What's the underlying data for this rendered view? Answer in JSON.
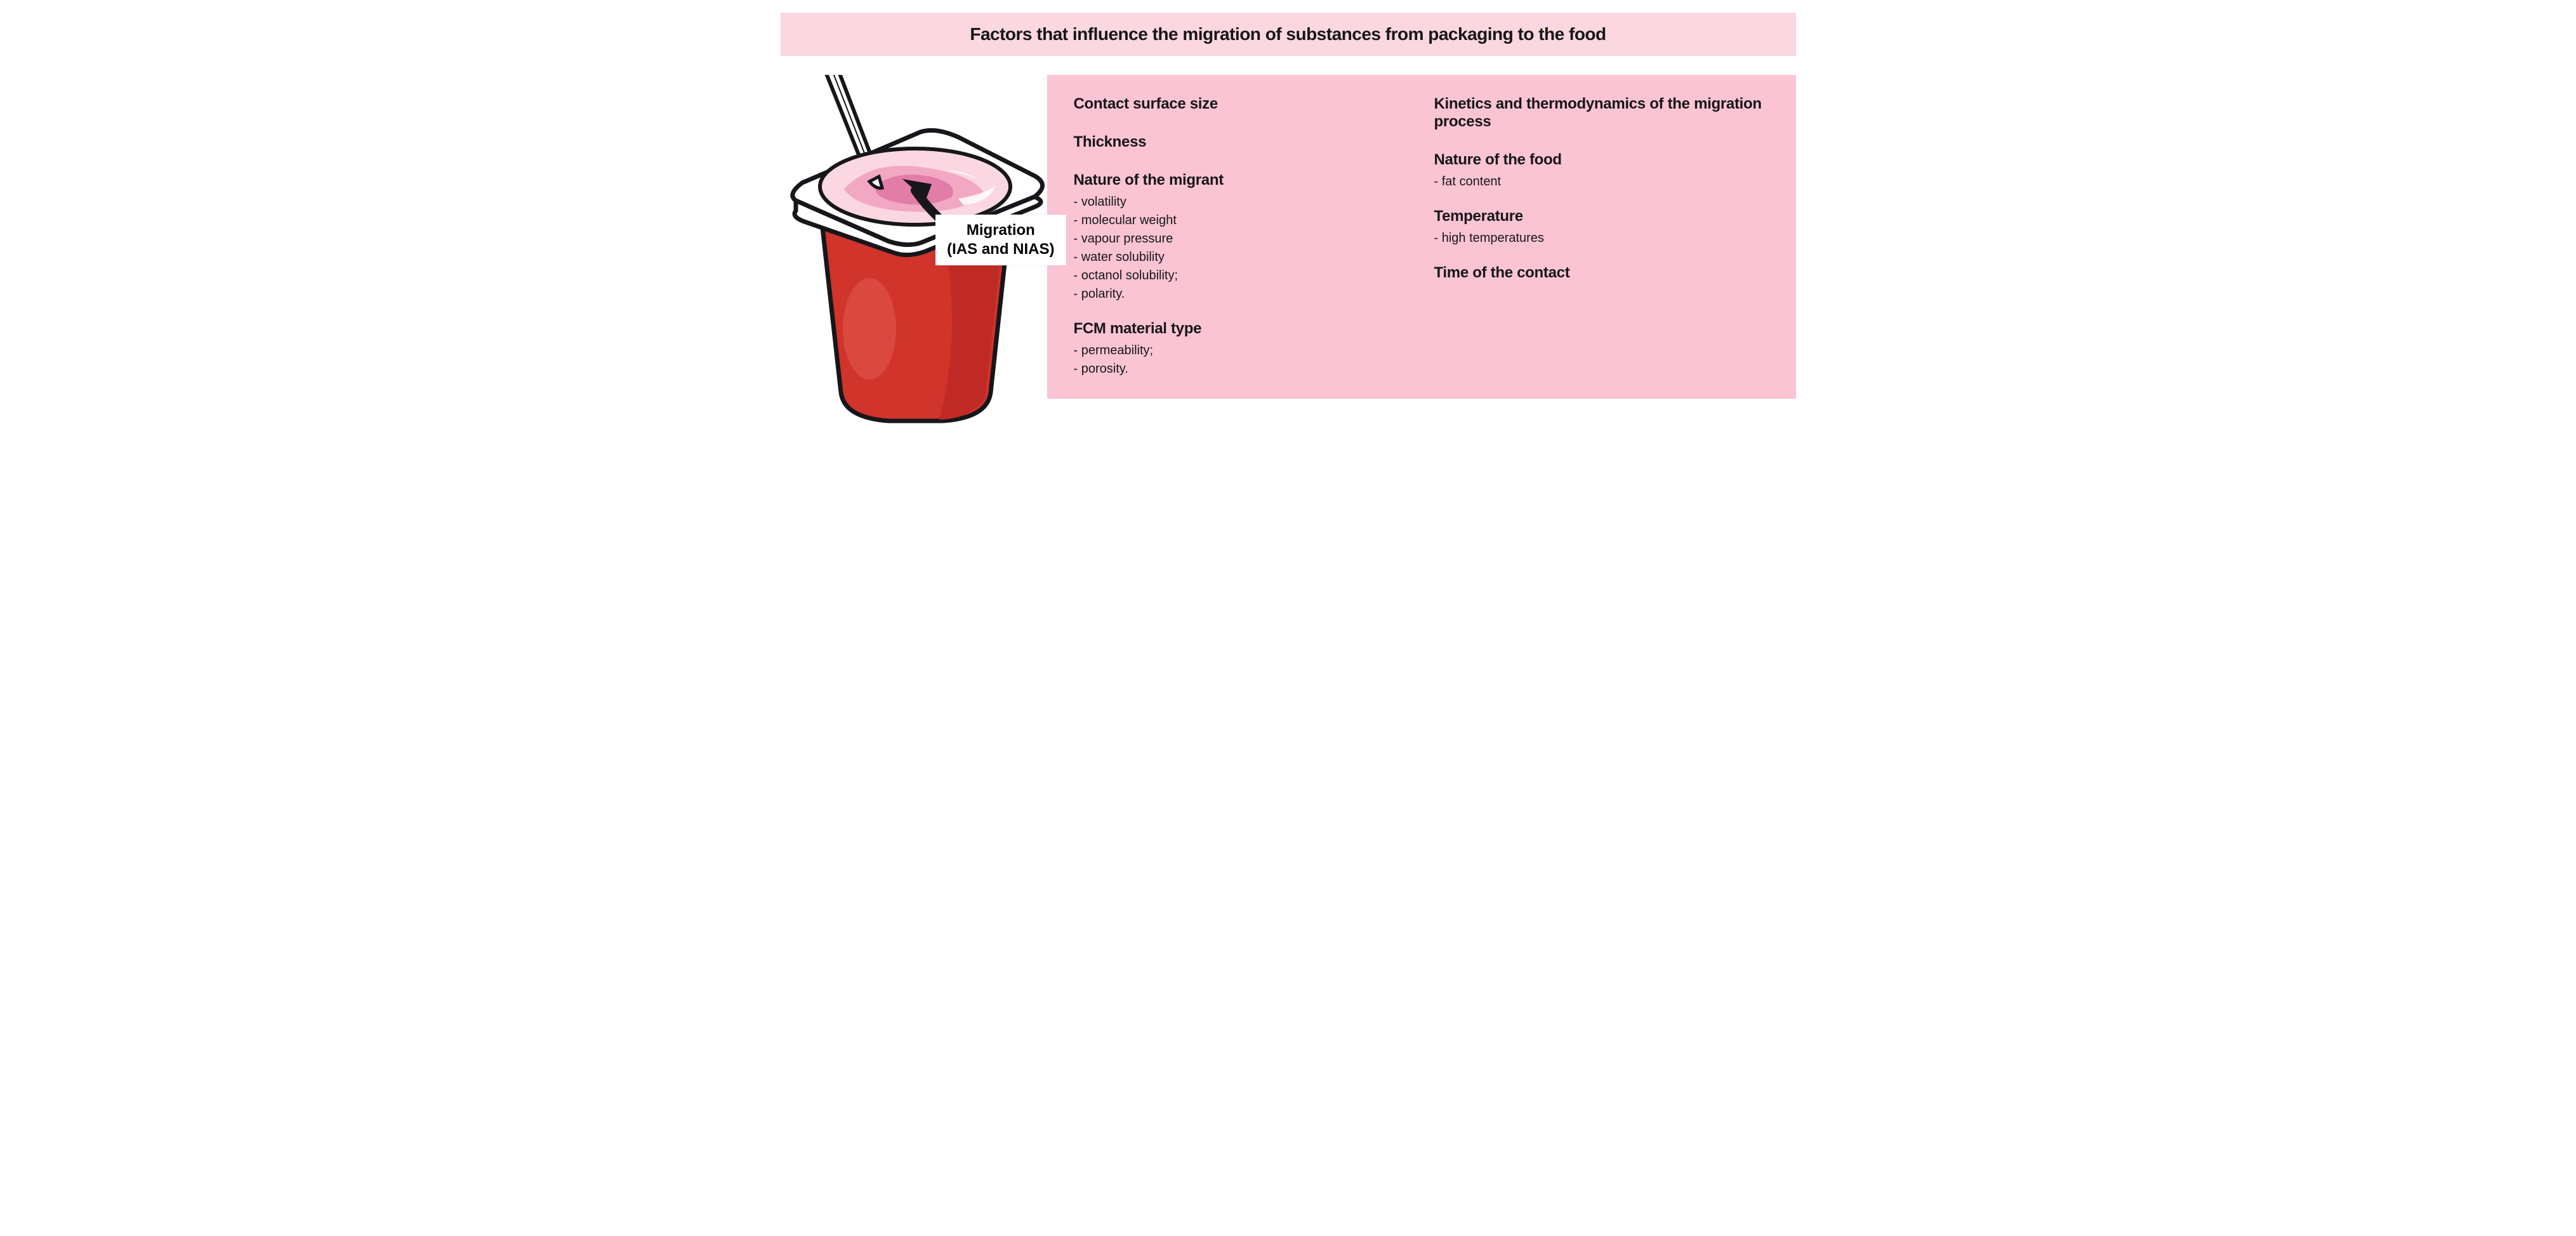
{
  "colors": {
    "title_bg": "#fbd7e0",
    "panel_bg": "#fac4d3",
    "cup_red": "#d0342b",
    "cup_red_dark": "#a7251f",
    "cup_red_shade": "#bc2a23",
    "yogurt_light": "#fbd7e2",
    "yogurt_mid": "#f2a8c2",
    "yogurt_dark": "#e27ca8",
    "lid_white": "#ffffff",
    "stroke": "#17161a"
  },
  "title": "Factors that influence the migration of substances from packaging to the food",
  "migration_label": {
    "line1": "Migration",
    "line2": "(IAS and NIAS)"
  },
  "left_column": [
    {
      "title": "Contact surface size",
      "items": []
    },
    {
      "title": "Thickness",
      "items": []
    },
    {
      "title": "Nature of the migrant",
      "items": [
        "- volatility",
        "- molecular weight",
        "- vapour pressure",
        "- water solubility",
        "- octanol solubility;",
        "- polarity."
      ]
    },
    {
      "title": "FCM material type",
      "items": [
        "- permeability;",
        "- porosity."
      ]
    }
  ],
  "right_column": [
    {
      "title": "Kinetics and thermodynamics of the migration process",
      "items": []
    },
    {
      "title": "Nature of the food",
      "items": [
        "- fat content"
      ]
    },
    {
      "title": "Temperature",
      "items": [
        "- high temperatures"
      ]
    },
    {
      "title": "Time of the contact",
      "items": []
    }
  ],
  "typography": {
    "title_fontsize": 28,
    "factor_title_fontsize": 24,
    "factor_item_fontsize": 20,
    "font_weight_title": 900
  }
}
